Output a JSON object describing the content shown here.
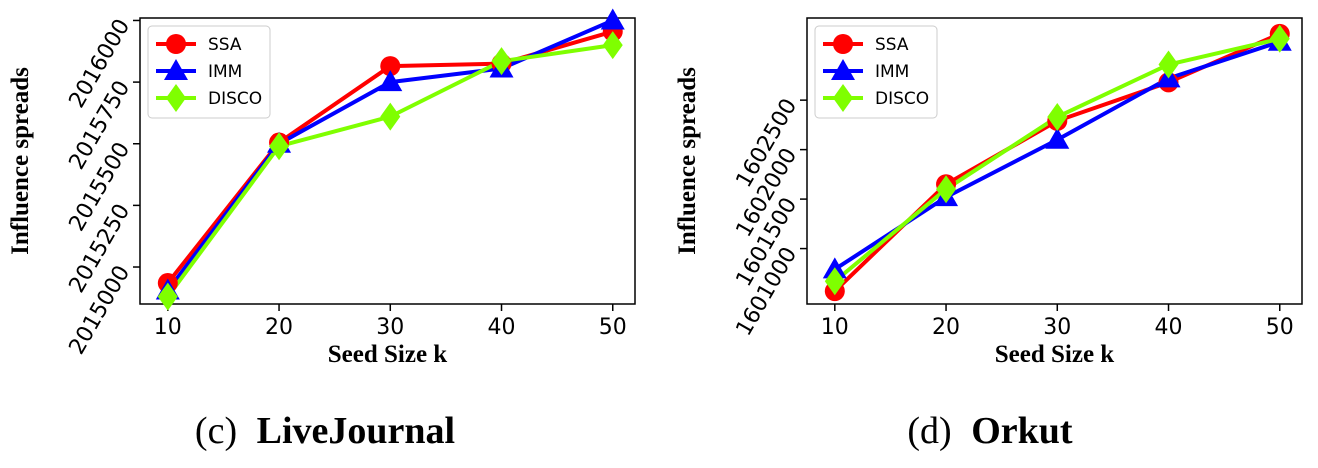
{
  "chart_data": [
    {
      "type": "line",
      "caption_prefix": "(c)",
      "caption_name": "LiveJournal",
      "xlabel": "Seed Size k",
      "ylabel": "Influence  spreads",
      "x": [
        10,
        20,
        30,
        40,
        50
      ],
      "xticks": [
        "10",
        "20",
        "30",
        "40",
        "50"
      ],
      "yticks": [
        "2015000",
        "2015250",
        "2015500",
        "2015750",
        "2016000"
      ],
      "ytick_values": [
        2015000,
        2015250,
        2015500,
        2015750,
        2016000
      ],
      "xlim": [
        7.5,
        52
      ],
      "ylim": [
        2014850,
        2016010
      ],
      "legend_position": "top-left",
      "series": [
        {
          "name": "SSA",
          "color": "#ff0000",
          "marker": "circle",
          "values": [
            2014935,
            2015505,
            2015815,
            2015825,
            2015955
          ]
        },
        {
          "name": "IMM",
          "color": "#0000ff",
          "marker": "triangle",
          "values": [
            2014905,
            2015500,
            2015750,
            2015805,
            2016000
          ]
        },
        {
          "name": "DISCO",
          "color": "#7fff00",
          "marker": "diamond",
          "values": [
            2014880,
            2015490,
            2015610,
            2015835,
            2015900
          ]
        }
      ]
    },
    {
      "type": "line",
      "caption_prefix": "(d)",
      "caption_name": "Orkut",
      "xlabel": "Seed Size k",
      "ylabel": "Influence  spreads",
      "x": [
        10,
        20,
        30,
        40,
        50
      ],
      "xticks": [
        "10",
        "20",
        "30",
        "40",
        "50"
      ],
      "yticks": [
        "1601000",
        "1601500",
        "1602000",
        "1602500"
      ],
      "ytick_values": [
        1601000,
        1601500,
        1602000,
        1602500
      ],
      "xlim": [
        7.5,
        52
      ],
      "ylim": [
        1600440,
        1603330
      ],
      "legend_position": "top-left",
      "series": [
        {
          "name": "SSA",
          "color": "#ff0000",
          "marker": "circle",
          "values": [
            1600570,
            1601650,
            1602290,
            1602680,
            1603170
          ]
        },
        {
          "name": "IMM",
          "color": "#0000ff",
          "marker": "triangle",
          "values": [
            1600790,
            1601520,
            1602100,
            1602720,
            1603090
          ]
        },
        {
          "name": "DISCO",
          "color": "#7fff00",
          "marker": "diamond",
          "values": [
            1600670,
            1601600,
            1602330,
            1602860,
            1603120
          ]
        }
      ]
    }
  ]
}
